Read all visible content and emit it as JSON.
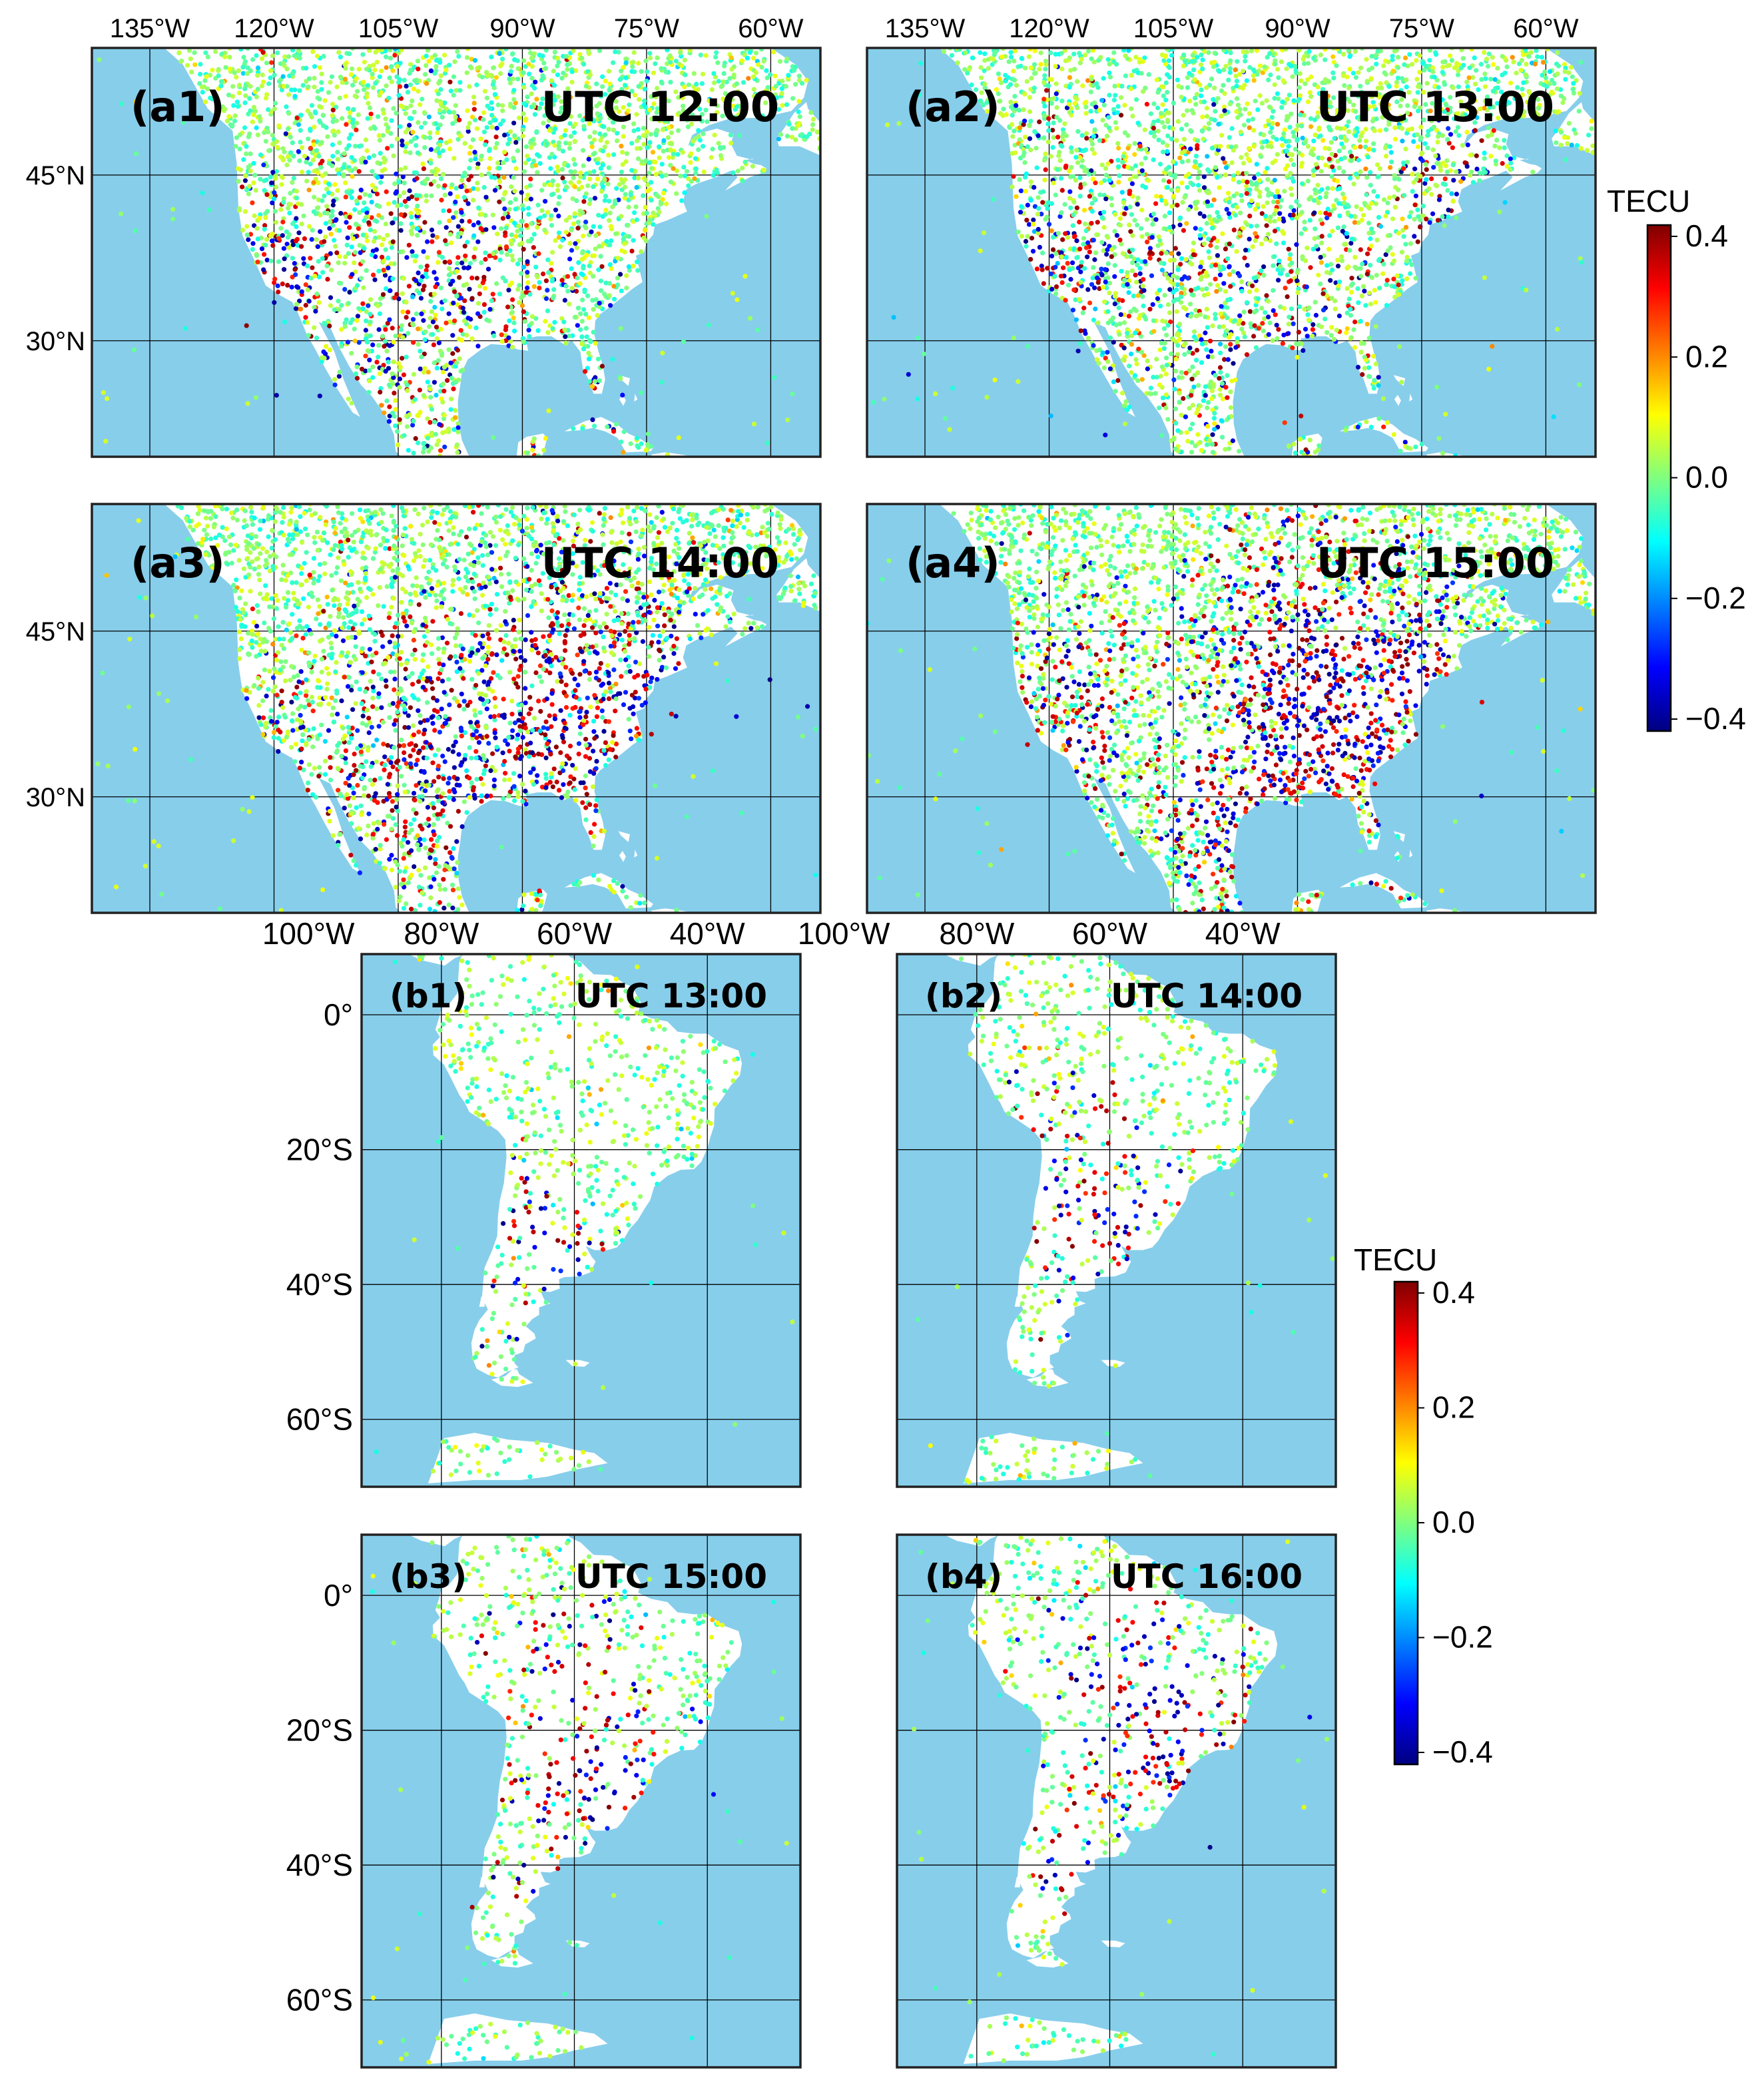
{
  "colors": {
    "ocean": "#87ceeb",
    "land": "#ffffff",
    "frame": "#222222",
    "grid": "#000000",
    "colormap": [
      "#00007f",
      "#0000ff",
      "#007fff",
      "#00ffff",
      "#7fff7f",
      "#ffff00",
      "#ff7f00",
      "#ff0000",
      "#7f0000"
    ]
  },
  "north_america": {
    "lon_ticks": [
      "135°W",
      "120°W",
      "105°W",
      "90°W",
      "75°W",
      "60°W"
    ],
    "lat_ticks": [
      "45°N",
      "30°N"
    ],
    "panels": [
      {
        "label": "(a1)",
        "time": "UTC 12:00"
      },
      {
        "label": "(a2)",
        "time": "UTC 13:00"
      },
      {
        "label": "(a3)",
        "time": "UTC 14:00"
      },
      {
        "label": "(a4)",
        "time": "UTC 15:00"
      }
    ],
    "colorbar": {
      "title": "TECU",
      "ticks": [
        "0.4",
        "0.2",
        "0.0",
        "−0.2",
        "−0.4"
      ],
      "range": [
        -0.4,
        0.4
      ]
    }
  },
  "south_america": {
    "lon_ticks": [
      "100°W",
      "80°W",
      "60°W",
      "40°W"
    ],
    "lat_ticks": [
      "0°",
      "20°S",
      "40°S",
      "60°S"
    ],
    "panels": [
      {
        "label": "(b1)",
        "time": "UTC 13:00"
      },
      {
        "label": "(b2)",
        "time": "UTC 14:00"
      },
      {
        "label": "(b3)",
        "time": "UTC 15:00"
      },
      {
        "label": "(b4)",
        "time": "UTC 16:00"
      }
    ],
    "colorbar": {
      "title": "TECU",
      "ticks": [
        "0.4",
        "0.2",
        "0.0",
        "−0.2",
        "−0.4"
      ],
      "range": [
        -0.4,
        0.4
      ]
    }
  }
}
